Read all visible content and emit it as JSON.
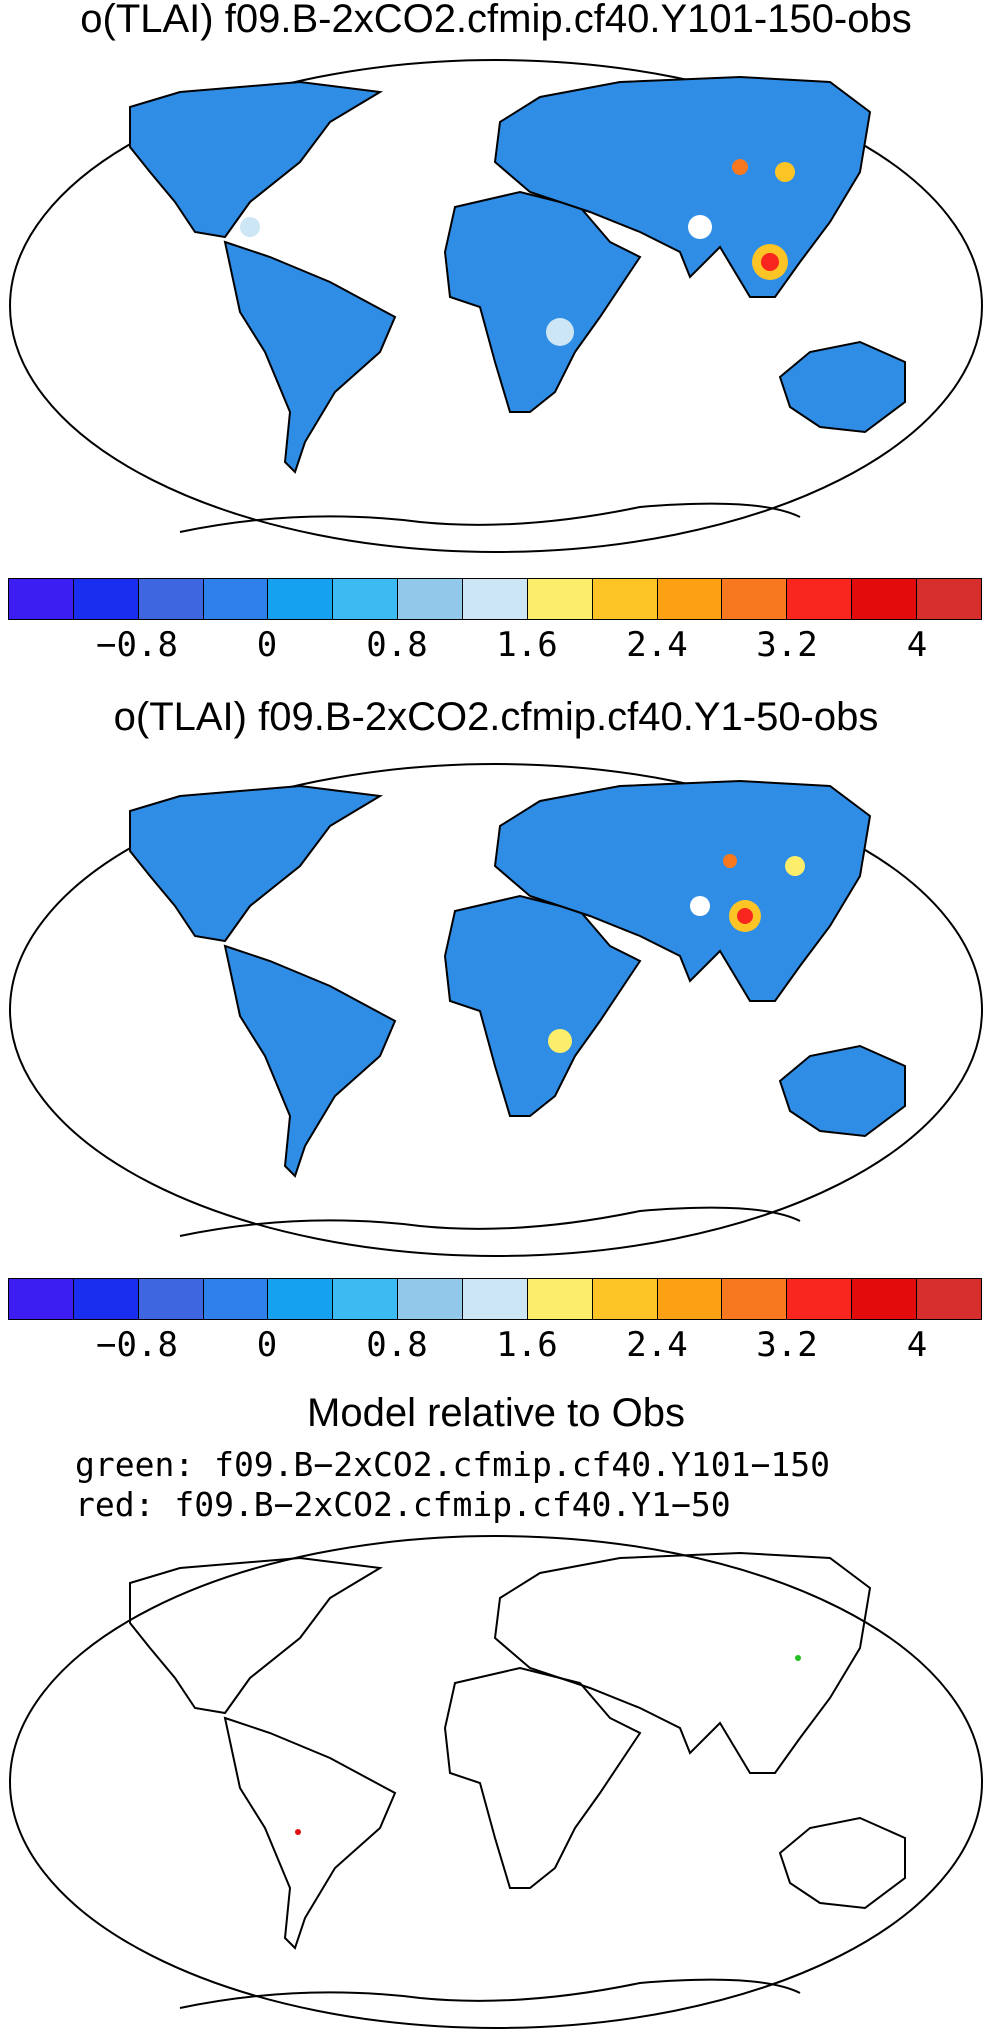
{
  "panel1": {
    "title": "o(TLAI) f09.B-2xCO2.cfmip.cf40.Y101-150-obs"
  },
  "panel2": {
    "title": "o(TLAI) f09.B-2xCO2.cfmip.cf40.Y1-50-obs"
  },
  "panel3": {
    "title": "Model relative to Obs",
    "line_green": "green: f09.B−2xCO2.cfmip.cf40.Y101−150",
    "line_red": "red: f09.B−2xCO2.cfmip.cf40.Y1−50"
  },
  "colorbar": {
    "colors": [
      "#3c1ef2",
      "#1a2ef0",
      "#3d66e0",
      "#2f80ea",
      "#16a0f0",
      "#3cbaf2",
      "#92c8ea",
      "#cde6f5",
      "#fcee6a",
      "#fcc424",
      "#fca014",
      "#f87820",
      "#f8261e",
      "#e20c0c",
      "#d62d2d"
    ],
    "tick_labels": [
      "−0.8",
      "0",
      "0.8",
      "1.6",
      "2.4",
      "3.2",
      "4"
    ]
  }
}
